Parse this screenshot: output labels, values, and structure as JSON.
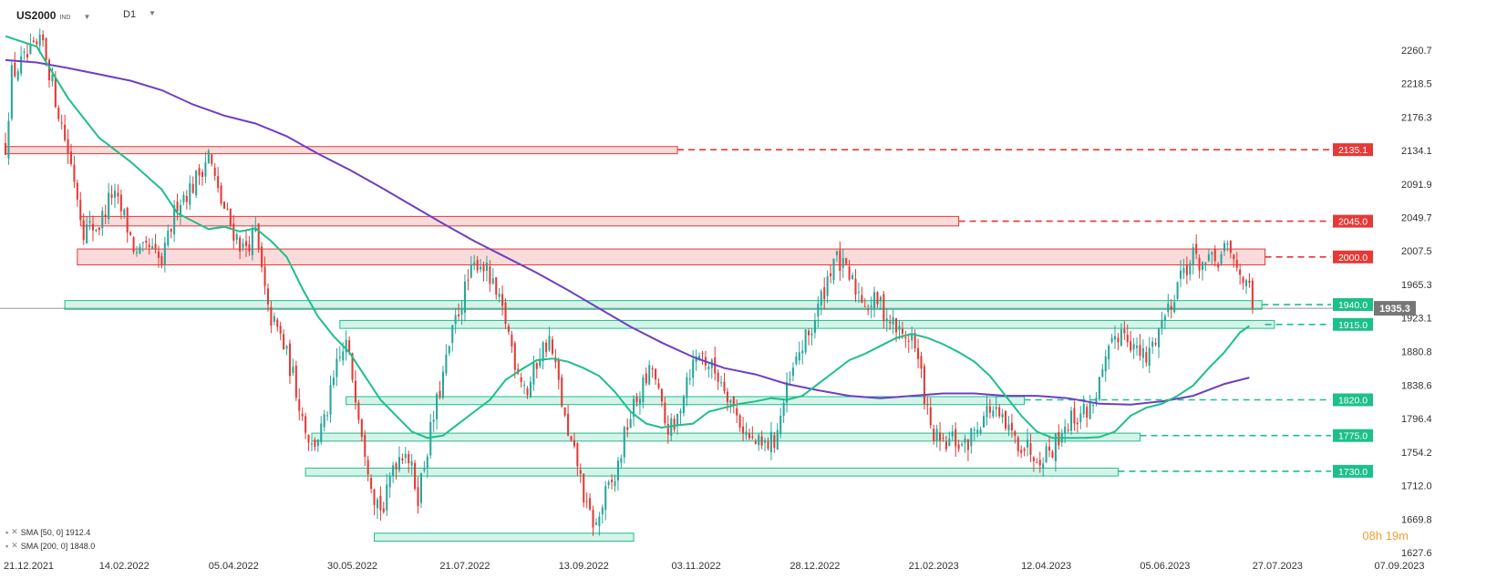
{
  "header": {
    "symbol": "US2000",
    "symbol_sub": "IND",
    "timeframe": "D1"
  },
  "legend": [
    {
      "text": "SMA [50, 0] 1912.4",
      "color": "#1dbf8a"
    },
    {
      "text": "SMA [200, 0] 1848.0",
      "color": "#6d3fc4"
    }
  ],
  "timer": "08h 19m",
  "colors": {
    "up": "#26a69a",
    "down": "#e53935",
    "sma50": "#1dbf8a",
    "sma200": "#6d3fc4",
    "resistance": "#e53935",
    "support": "#1dbf8a",
    "last_price": "#777777"
  },
  "chart_data": {
    "type": "candlestick",
    "symbol": "US2000",
    "timeframe": "D1",
    "x_ticks": [
      "21.12.2021",
      "14.02.2022",
      "05.04.2022",
      "30.05.2022",
      "21.07.2022",
      "13.09.2022",
      "03.11.2022",
      "28.12.2022",
      "21.02.2023",
      "12.04.2023",
      "05.06.2023",
      "27.07.2023",
      "07.09.2023"
    ],
    "x_tick_pos": [
      0,
      38,
      73,
      111,
      147,
      185,
      221,
      259,
      297,
      333,
      371,
      407,
      446
    ],
    "y_ticks": [
      2260.7,
      2218.5,
      2176.3,
      2134.1,
      2091.9,
      2049.7,
      2007.5,
      1965.3,
      1923.1,
      1880.8,
      1838.6,
      1796.4,
      1754.2,
      1712.0,
      1669.8,
      1627.6
    ],
    "y_range": [
      1627.6,
      2280
    ],
    "last_price": 1935.3,
    "levels": [
      {
        "label": "2135.1",
        "value": 2135.1,
        "kind": "resistance"
      },
      {
        "label": "2045.0",
        "value": 2045.0,
        "kind": "resistance"
      },
      {
        "label": "2000.0",
        "value": 2000.0,
        "kind": "resistance"
      },
      {
        "label": "1940.0",
        "value": 1940.0,
        "kind": "support"
      },
      {
        "label": "1915.0",
        "value": 1915.0,
        "kind": "support"
      },
      {
        "label": "1820.0",
        "value": 1820.0,
        "kind": "support"
      },
      {
        "label": "1775.0",
        "value": 1775.0,
        "kind": "support"
      },
      {
        "label": "1730.0",
        "value": 1730.0,
        "kind": "support"
      }
    ],
    "zones": [
      {
        "kind": "resistance",
        "from": 0,
        "to": 215,
        "low": 2130,
        "high": 2139
      },
      {
        "kind": "resistance",
        "from": 24,
        "to": 305,
        "low": 2039,
        "high": 2051
      },
      {
        "kind": "resistance",
        "from": 23,
        "to": 403,
        "low": 1990,
        "high": 2010
      },
      {
        "kind": "support",
        "from": 19,
        "to": 402,
        "low": 1934,
        "high": 1945
      },
      {
        "kind": "support",
        "from": 107,
        "to": 406,
        "low": 1910,
        "high": 1920
      },
      {
        "kind": "support",
        "from": 109,
        "to": 326,
        "low": 1814,
        "high": 1824
      },
      {
        "kind": "support",
        "from": 98,
        "to": 363,
        "low": 1768,
        "high": 1778
      },
      {
        "kind": "support",
        "from": 96,
        "to": 356,
        "low": 1724,
        "high": 1734
      },
      {
        "kind": "support",
        "from": 118,
        "to": 201,
        "low": 1642,
        "high": 1652
      }
    ],
    "sma50": [
      [
        0,
        2278
      ],
      [
        10,
        2265
      ],
      [
        20,
        2200
      ],
      [
        30,
        2150
      ],
      [
        40,
        2120
      ],
      [
        50,
        2085
      ],
      [
        55,
        2055
      ],
      [
        60,
        2045
      ],
      [
        65,
        2035
      ],
      [
        70,
        2038
      ],
      [
        75,
        2032
      ],
      [
        80,
        2036
      ],
      [
        85,
        2020
      ],
      [
        90,
        2000
      ],
      [
        95,
        1960
      ],
      [
        100,
        1925
      ],
      [
        105,
        1900
      ],
      [
        110,
        1880
      ],
      [
        115,
        1850
      ],
      [
        120,
        1820
      ],
      [
        125,
        1800
      ],
      [
        130,
        1780
      ],
      [
        135,
        1772
      ],
      [
        140,
        1775
      ],
      [
        145,
        1790
      ],
      [
        150,
        1805
      ],
      [
        155,
        1820
      ],
      [
        160,
        1845
      ],
      [
        165,
        1858
      ],
      [
        170,
        1870
      ],
      [
        175,
        1872
      ],
      [
        180,
        1868
      ],
      [
        185,
        1860
      ],
      [
        190,
        1850
      ],
      [
        195,
        1830
      ],
      [
        200,
        1805
      ],
      [
        205,
        1790
      ],
      [
        210,
        1785
      ],
      [
        215,
        1788
      ],
      [
        220,
        1790
      ],
      [
        225,
        1805
      ],
      [
        230,
        1810
      ],
      [
        235,
        1815
      ],
      [
        240,
        1818
      ],
      [
        245,
        1822
      ],
      [
        250,
        1820
      ],
      [
        255,
        1825
      ],
      [
        260,
        1840
      ],
      [
        265,
        1855
      ],
      [
        270,
        1870
      ],
      [
        275,
        1878
      ],
      [
        280,
        1888
      ],
      [
        285,
        1898
      ],
      [
        290,
        1903
      ],
      [
        295,
        1898
      ],
      [
        300,
        1890
      ],
      [
        305,
        1880
      ],
      [
        310,
        1868
      ],
      [
        315,
        1850
      ],
      [
        320,
        1825
      ],
      [
        325,
        1800
      ],
      [
        330,
        1780
      ],
      [
        335,
        1772
      ],
      [
        340,
        1772
      ],
      [
        345,
        1772
      ],
      [
        350,
        1773
      ],
      [
        355,
        1780
      ],
      [
        360,
        1800
      ],
      [
        365,
        1810
      ],
      [
        370,
        1815
      ],
      [
        375,
        1825
      ],
      [
        380,
        1838
      ],
      [
        385,
        1860
      ],
      [
        390,
        1880
      ],
      [
        395,
        1905
      ],
      [
        398,
        1913
      ]
    ],
    "sma200": [
      [
        0,
        2248
      ],
      [
        10,
        2245
      ],
      [
        20,
        2238
      ],
      [
        30,
        2230
      ],
      [
        40,
        2222
      ],
      [
        50,
        2210
      ],
      [
        60,
        2192
      ],
      [
        70,
        2178
      ],
      [
        80,
        2168
      ],
      [
        90,
        2152
      ],
      [
        100,
        2130
      ],
      [
        110,
        2110
      ],
      [
        120,
        2088
      ],
      [
        130,
        2065
      ],
      [
        140,
        2042
      ],
      [
        150,
        2020
      ],
      [
        160,
        2000
      ],
      [
        170,
        1980
      ],
      [
        180,
        1958
      ],
      [
        190,
        1935
      ],
      [
        200,
        1912
      ],
      [
        210,
        1892
      ],
      [
        220,
        1874
      ],
      [
        230,
        1860
      ],
      [
        240,
        1852
      ],
      [
        250,
        1840
      ],
      [
        260,
        1832
      ],
      [
        270,
        1825
      ],
      [
        280,
        1822
      ],
      [
        290,
        1825
      ],
      [
        300,
        1828
      ],
      [
        310,
        1828
      ],
      [
        320,
        1825
      ],
      [
        330,
        1825
      ],
      [
        340,
        1822
      ],
      [
        350,
        1815
      ],
      [
        360,
        1814
      ],
      [
        370,
        1818
      ],
      [
        380,
        1825
      ],
      [
        390,
        1840
      ],
      [
        398,
        1848
      ]
    ]
  }
}
